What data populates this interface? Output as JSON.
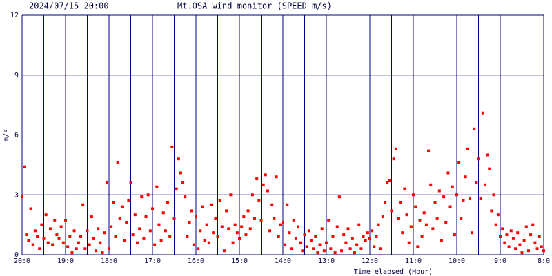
{
  "chart_data": {
    "type": "scatter",
    "date": "2024/07/15 20:00",
    "title": "Mt.OSA wind monitor (SPEED m/s)",
    "y_label": "m/s",
    "x_label": "Time elapsed (Hour)",
    "xlim": [
      0,
      12
    ],
    "ylim": [
      0,
      12
    ],
    "xticks": [
      {
        "value": 0,
        "label": "20:0"
      },
      {
        "value": 1,
        "label": "19:0"
      },
      {
        "value": 2,
        "label": "18:0"
      },
      {
        "value": 3,
        "label": "17:0"
      },
      {
        "value": 4,
        "label": "16:0"
      },
      {
        "value": 5,
        "label": "15:0"
      },
      {
        "value": 6,
        "label": "14:0"
      },
      {
        "value": 7,
        "label": "13:0"
      },
      {
        "value": 8,
        "label": "12:0"
      },
      {
        "value": 9,
        "label": "11:0"
      },
      {
        "value": 10,
        "label": "10:0"
      },
      {
        "value": 11,
        "label": "9:0"
      },
      {
        "value": 12,
        "label": "8:0"
      }
    ],
    "yticks": [
      0,
      3,
      6,
      9,
      12
    ],
    "grid": true,
    "series": [
      {
        "color": "#ff0000",
        "x": [
          0,
          0.05,
          0.1,
          0.15,
          0.2,
          0.25,
          0.3,
          0.35,
          0.4,
          0.45,
          0.5,
          0.55,
          0.6,
          0.65,
          0.7,
          0.75,
          0.8,
          0.85,
          0.9,
          0.95,
          1,
          1.05,
          1.1,
          1.15,
          1.2,
          1.25,
          1.3,
          1.35,
          1.4,
          1.45,
          1.5,
          1.55,
          1.6,
          1.65,
          1.7,
          1.75,
          1.8,
          1.85,
          1.9,
          1.95,
          2,
          2.05,
          2.1,
          2.15,
          2.2,
          2.25,
          2.3,
          2.35,
          2.4,
          2.45,
          2.5,
          2.55,
          2.6,
          2.65,
          2.7,
          2.75,
          2.8,
          2.85,
          2.9,
          2.95,
          3,
          3.05,
          3.1,
          3.15,
          3.2,
          3.25,
          3.3,
          3.35,
          3.4,
          3.45,
          3.5,
          3.55,
          3.6,
          3.65,
          3.7,
          3.75,
          3.8,
          3.85,
          3.9,
          3.95,
          4,
          4.05,
          4.1,
          4.15,
          4.2,
          4.25,
          4.3,
          4.35,
          4.4,
          4.45,
          4.5,
          4.55,
          4.6,
          4.65,
          4.7,
          4.75,
          4.8,
          4.85,
          4.9,
          4.95,
          5,
          5.05,
          5.1,
          5.15,
          5.2,
          5.25,
          5.3,
          5.35,
          5.4,
          5.45,
          5.5,
          5.55,
          5.6,
          5.65,
          5.7,
          5.75,
          5.8,
          5.85,
          5.9,
          5.95,
          6,
          6.05,
          6.1,
          6.15,
          6.2,
          6.25,
          6.3,
          6.35,
          6.4,
          6.45,
          6.5,
          6.55,
          6.6,
          6.65,
          6.7,
          6.75,
          6.8,
          6.85,
          6.9,
          6.95,
          7,
          7.05,
          7.1,
          7.15,
          7.2,
          7.25,
          7.3,
          7.35,
          7.4,
          7.45,
          7.5,
          7.55,
          7.6,
          7.65,
          7.7,
          7.75,
          7.8,
          7.85,
          7.9,
          7.95,
          8,
          8.05,
          8.1,
          8.15,
          8.2,
          8.25,
          8.3,
          8.35,
          8.4,
          8.45,
          8.5,
          8.55,
          8.6,
          8.65,
          8.7,
          8.75,
          8.8,
          8.85,
          8.9,
          8.95,
          9,
          9.05,
          9.1,
          9.15,
          9.2,
          9.25,
          9.3,
          9.35,
          9.4,
          9.45,
          9.5,
          9.55,
          9.6,
          9.65,
          9.7,
          9.75,
          9.8,
          9.85,
          9.9,
          9.95,
          10,
          10.05,
          10.1,
          10.15,
          10.2,
          10.25,
          10.3,
          10.35,
          10.4,
          10.45,
          10.5,
          10.55,
          10.6,
          10.65,
          10.7,
          10.75,
          10.8,
          10.85,
          10.9,
          10.95,
          11,
          11.05,
          11.1,
          11.15,
          11.2,
          11.25,
          11.3,
          11.35,
          11.4,
          11.45,
          11.5,
          11.55,
          11.6,
          11.65,
          11.7,
          11.75,
          11.8,
          11.85,
          11.9,
          11.95,
          12
        ],
        "values": [
          2.9,
          4.4,
          1.0,
          0.7,
          2.3,
          0.5,
          1.2,
          0.9,
          0.3,
          1.5,
          0.8,
          2.0,
          0.6,
          1.3,
          0.5,
          1.7,
          1.0,
          0.8,
          1.4,
          0.6,
          1.7,
          0.4,
          0.9,
          0.1,
          1.2,
          0.3,
          0.6,
          0.9,
          2.5,
          0.3,
          1.2,
          0.5,
          1.9,
          0.8,
          0.2,
          1.3,
          0.6,
          0.1,
          1.1,
          3.6,
          0.3,
          1.4,
          2.6,
          0.9,
          4.6,
          1.8,
          2.4,
          0.7,
          1.6,
          2.7,
          3.6,
          1.0,
          2.0,
          0.6,
          1.3,
          2.9,
          0.8,
          1.9,
          3.0,
          1.2,
          2.3,
          0.5,
          3.4,
          1.5,
          0.7,
          2.1,
          1.2,
          2.6,
          0.9,
          5.4,
          1.8,
          3.3,
          4.8,
          4.1,
          3.6,
          2.9,
          0.9,
          1.6,
          2.2,
          0.5,
          1.9,
          0.3,
          1.2,
          2.4,
          0.7,
          1.5,
          0.6,
          2.5,
          1.1,
          1.8,
          0.9,
          2.7,
          1.4,
          0.2,
          2.2,
          1.3,
          3.0,
          0.6,
          1.5,
          1.1,
          0.8,
          1.4,
          1.9,
          1.0,
          2.2,
          1.3,
          3.0,
          1.8,
          3.8,
          2.7,
          1.7,
          3.5,
          4.0,
          3.2,
          1.2,
          2.5,
          1.8,
          3.9,
          0.9,
          1.5,
          1.6,
          0.5,
          2.5,
          1.1,
          0.3,
          1.7,
          0.8,
          1.4,
          0.6,
          0.2,
          1.0,
          0.4,
          1.2,
          0.7,
          0.3,
          0.9,
          0.1,
          0.5,
          1.3,
          0.2,
          0.6,
          1.7,
          0.3,
          0.9,
          0.1,
          1.4,
          2.9,
          0.2,
          1.0,
          0.6,
          1.3,
          0.3,
          0.8,
          0.1,
          0.5,
          1.5,
          0.3,
          0.9,
          0.7,
          1.1,
          0.8,
          1.2,
          0.4,
          0.9,
          1.5,
          0.3,
          1.9,
          2.6,
          3.6,
          3.7,
          2.2,
          4.8,
          5.3,
          1.8,
          2.6,
          1.1,
          3.3,
          2.0,
          0.6,
          1.4,
          3.0,
          2.4,
          0.4,
          1.7,
          0.9,
          2.1,
          1.5,
          5.2,
          3.5,
          1.3,
          2.6,
          1.8,
          3.2,
          0.7,
          2.9,
          1.6,
          4.1,
          2.4,
          3.4,
          1.0,
          3.0,
          4.6,
          1.8,
          2.7,
          3.9,
          5.3,
          2.8,
          1.1,
          6.3,
          3.6,
          4.8,
          2.8,
          7.1,
          3.5,
          5.0,
          4.3,
          2.2,
          3.0,
          1.5,
          2.0,
          0.9,
          1.3,
          0.6,
          1.0,
          0.4,
          1.2,
          0.8,
          0.3,
          1.1,
          0.5,
          0.1,
          0.7,
          1.4,
          0.2,
          1.0,
          1.5,
          0.6,
          0.3,
          0.9,
          0.4,
          0.2
        ]
      }
    ]
  }
}
